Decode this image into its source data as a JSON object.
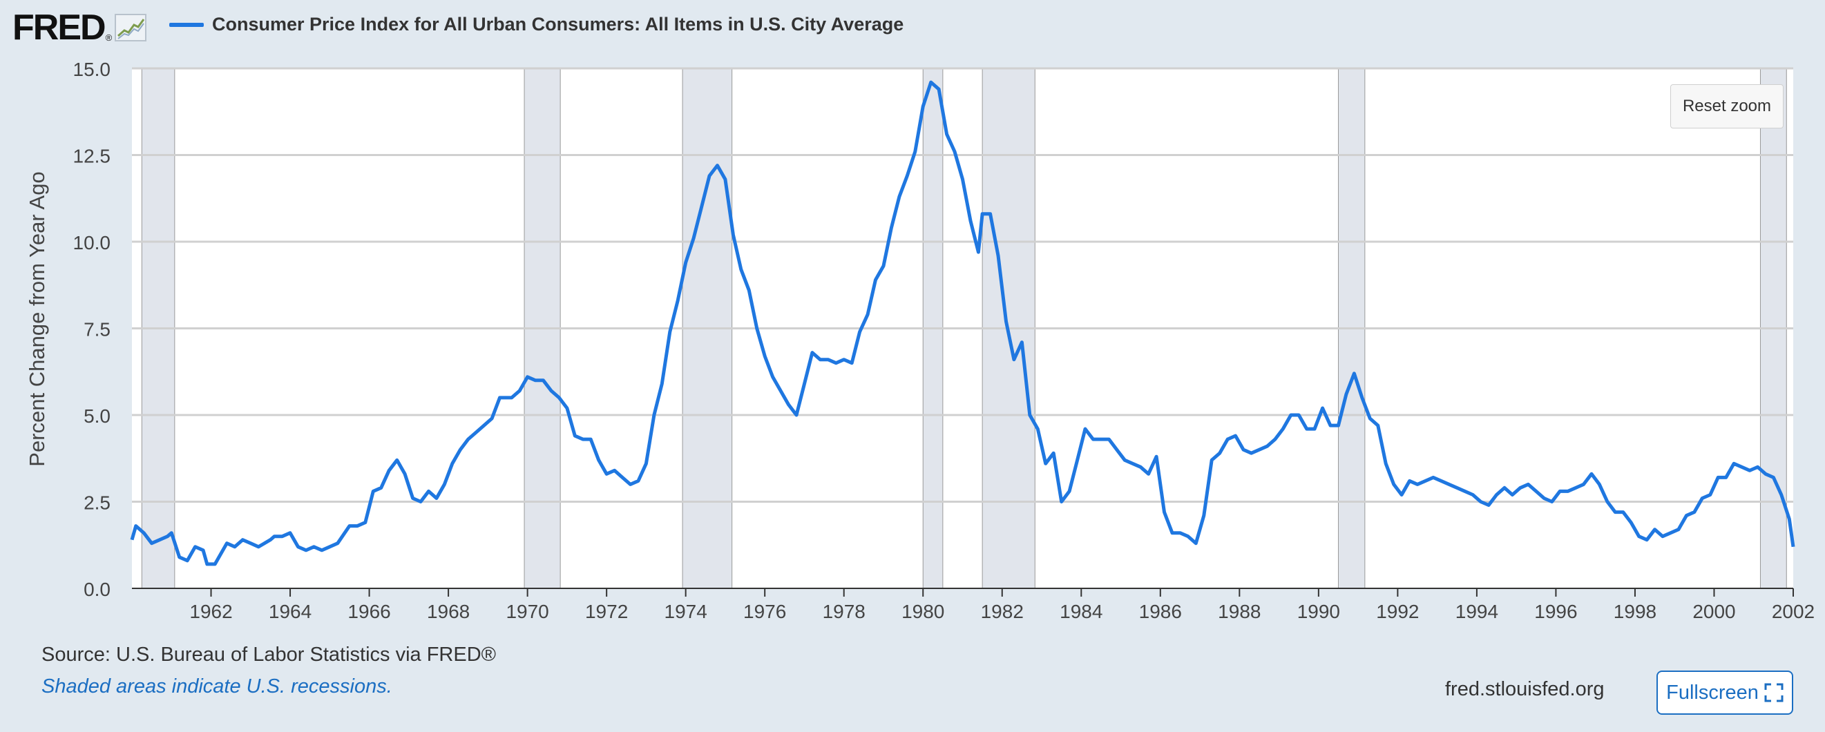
{
  "header": {
    "logo_text": "FRED",
    "logo_reg": "®",
    "legend_label": "Consumer Price Index for All Urban Consumers: All Items in U.S. City Average",
    "series_color": "#1f77e0"
  },
  "controls": {
    "reset_zoom": "Reset zoom",
    "fullscreen": "Fullscreen"
  },
  "footer": {
    "source": "Source: U.S. Bureau of Labor Statistics via FRED®",
    "note": "Shaded areas indicate U.S. recessions.",
    "site": "fred.stlouisfed.org"
  },
  "chart_data": {
    "type": "line",
    "ylabel": "Percent Change from Year Ago",
    "xlabel": "",
    "xlim": [
      1960.0,
      2002.0
    ],
    "ylim": [
      0,
      15
    ],
    "yticks": [
      "0.0",
      "2.5",
      "5.0",
      "7.5",
      "10.0",
      "12.5",
      "15.0"
    ],
    "xticks": [
      "1962",
      "1964",
      "1966",
      "1968",
      "1970",
      "1972",
      "1974",
      "1976",
      "1978",
      "1980",
      "1982",
      "1984",
      "1986",
      "1988",
      "1990",
      "1992",
      "1994",
      "1996",
      "1998",
      "2000",
      "2002"
    ],
    "grid": true,
    "recessions": [
      [
        1960.25,
        1961.08
      ],
      [
        1969.92,
        1970.83
      ],
      [
        1973.92,
        1975.17
      ],
      [
        1980.0,
        1980.5
      ],
      [
        1981.5,
        1982.83
      ],
      [
        1990.5,
        1991.17
      ],
      [
        2001.17,
        2001.83
      ]
    ],
    "series": [
      {
        "name": "Consumer Price Index for All Urban Consumers: All Items in U.S. City Average",
        "points": [
          [
            1960.0,
            1.4
          ],
          [
            1960.1,
            1.8
          ],
          [
            1960.3,
            1.6
          ],
          [
            1960.5,
            1.3
          ],
          [
            1960.7,
            1.4
          ],
          [
            1960.9,
            1.5
          ],
          [
            1961.0,
            1.6
          ],
          [
            1961.2,
            0.9
          ],
          [
            1961.4,
            0.8
          ],
          [
            1961.6,
            1.2
          ],
          [
            1961.8,
            1.1
          ],
          [
            1961.9,
            0.7
          ],
          [
            1962.1,
            0.7
          ],
          [
            1962.4,
            1.3
          ],
          [
            1962.6,
            1.2
          ],
          [
            1962.8,
            1.4
          ],
          [
            1963.0,
            1.3
          ],
          [
            1963.2,
            1.2
          ],
          [
            1963.5,
            1.4
          ],
          [
            1963.6,
            1.5
          ],
          [
            1963.8,
            1.5
          ],
          [
            1964.0,
            1.6
          ],
          [
            1964.2,
            1.2
          ],
          [
            1964.4,
            1.1
          ],
          [
            1964.6,
            1.2
          ],
          [
            1964.8,
            1.1
          ],
          [
            1965.0,
            1.2
          ],
          [
            1965.2,
            1.3
          ],
          [
            1965.5,
            1.8
          ],
          [
            1965.7,
            1.8
          ],
          [
            1965.9,
            1.9
          ],
          [
            1966.1,
            2.8
          ],
          [
            1966.3,
            2.9
          ],
          [
            1966.5,
            3.4
          ],
          [
            1966.7,
            3.7
          ],
          [
            1966.9,
            3.3
          ],
          [
            1967.1,
            2.6
          ],
          [
            1967.3,
            2.5
          ],
          [
            1967.5,
            2.8
          ],
          [
            1967.7,
            2.6
          ],
          [
            1967.9,
            3.0
          ],
          [
            1968.1,
            3.6
          ],
          [
            1968.3,
            4.0
          ],
          [
            1968.5,
            4.3
          ],
          [
            1968.7,
            4.5
          ],
          [
            1968.9,
            4.7
          ],
          [
            1969.1,
            4.9
          ],
          [
            1969.3,
            5.5
          ],
          [
            1969.6,
            5.5
          ],
          [
            1969.8,
            5.7
          ],
          [
            1970.0,
            6.1
          ],
          [
            1970.2,
            6.0
          ],
          [
            1970.4,
            6.0
          ],
          [
            1970.6,
            5.7
          ],
          [
            1970.8,
            5.5
          ],
          [
            1971.0,
            5.2
          ],
          [
            1971.2,
            4.4
          ],
          [
            1971.4,
            4.3
          ],
          [
            1971.6,
            4.3
          ],
          [
            1971.8,
            3.7
          ],
          [
            1972.0,
            3.3
          ],
          [
            1972.2,
            3.4
          ],
          [
            1972.4,
            3.2
          ],
          [
            1972.6,
            3.0
          ],
          [
            1972.8,
            3.1
          ],
          [
            1973.0,
            3.6
          ],
          [
            1973.2,
            5.0
          ],
          [
            1973.4,
            5.9
          ],
          [
            1973.6,
            7.4
          ],
          [
            1973.8,
            8.3
          ],
          [
            1974.0,
            9.4
          ],
          [
            1974.2,
            10.1
          ],
          [
            1974.4,
            11.0
          ],
          [
            1974.6,
            11.9
          ],
          [
            1974.8,
            12.2
          ],
          [
            1975.0,
            11.8
          ],
          [
            1975.2,
            10.2
          ],
          [
            1975.4,
            9.2
          ],
          [
            1975.6,
            8.6
          ],
          [
            1975.8,
            7.5
          ],
          [
            1976.0,
            6.7
          ],
          [
            1976.2,
            6.1
          ],
          [
            1976.4,
            5.7
          ],
          [
            1976.6,
            5.3
          ],
          [
            1976.8,
            5.0
          ],
          [
            1977.0,
            5.9
          ],
          [
            1977.2,
            6.8
          ],
          [
            1977.4,
            6.6
          ],
          [
            1977.6,
            6.6
          ],
          [
            1977.8,
            6.5
          ],
          [
            1978.0,
            6.6
          ],
          [
            1978.2,
            6.5
          ],
          [
            1978.4,
            7.4
          ],
          [
            1978.6,
            7.9
          ],
          [
            1978.8,
            8.9
          ],
          [
            1979.0,
            9.3
          ],
          [
            1979.2,
            10.4
          ],
          [
            1979.4,
            11.3
          ],
          [
            1979.6,
            11.9
          ],
          [
            1979.8,
            12.6
          ],
          [
            1980.0,
            13.9
          ],
          [
            1980.2,
            14.6
          ],
          [
            1980.4,
            14.4
          ],
          [
            1980.6,
            13.1
          ],
          [
            1980.8,
            12.6
          ],
          [
            1981.0,
            11.8
          ],
          [
            1981.2,
            10.6
          ],
          [
            1981.4,
            9.7
          ],
          [
            1981.5,
            10.8
          ],
          [
            1981.7,
            10.8
          ],
          [
            1981.9,
            9.6
          ],
          [
            1982.1,
            7.7
          ],
          [
            1982.3,
            6.6
          ],
          [
            1982.5,
            7.1
          ],
          [
            1982.7,
            5.0
          ],
          [
            1982.9,
            4.6
          ],
          [
            1983.1,
            3.6
          ],
          [
            1983.3,
            3.9
          ],
          [
            1983.5,
            2.5
          ],
          [
            1983.7,
            2.8
          ],
          [
            1983.9,
            3.7
          ],
          [
            1984.1,
            4.6
          ],
          [
            1984.3,
            4.3
          ],
          [
            1984.5,
            4.3
          ],
          [
            1984.7,
            4.3
          ],
          [
            1984.9,
            4.0
          ],
          [
            1985.1,
            3.7
          ],
          [
            1985.3,
            3.6
          ],
          [
            1985.5,
            3.5
          ],
          [
            1985.7,
            3.3
          ],
          [
            1985.9,
            3.8
          ],
          [
            1986.1,
            2.2
          ],
          [
            1986.3,
            1.6
          ],
          [
            1986.5,
            1.6
          ],
          [
            1986.7,
            1.5
          ],
          [
            1986.9,
            1.3
          ],
          [
            1987.1,
            2.1
          ],
          [
            1987.3,
            3.7
          ],
          [
            1987.5,
            3.9
          ],
          [
            1987.7,
            4.3
          ],
          [
            1987.9,
            4.4
          ],
          [
            1988.1,
            4.0
          ],
          [
            1988.3,
            3.9
          ],
          [
            1988.5,
            4.0
          ],
          [
            1988.7,
            4.1
          ],
          [
            1988.9,
            4.3
          ],
          [
            1989.1,
            4.6
          ],
          [
            1989.3,
            5.0
          ],
          [
            1989.5,
            5.0
          ],
          [
            1989.7,
            4.6
          ],
          [
            1989.9,
            4.6
          ],
          [
            1990.1,
            5.2
          ],
          [
            1990.3,
            4.7
          ],
          [
            1990.5,
            4.7
          ],
          [
            1990.7,
            5.6
          ],
          [
            1990.9,
            6.2
          ],
          [
            1991.1,
            5.5
          ],
          [
            1991.3,
            4.9
          ],
          [
            1991.5,
            4.7
          ],
          [
            1991.7,
            3.6
          ],
          [
            1991.9,
            3.0
          ],
          [
            1992.1,
            2.7
          ],
          [
            1992.3,
            3.1
          ],
          [
            1992.5,
            3.0
          ],
          [
            1992.7,
            3.1
          ],
          [
            1992.9,
            3.2
          ],
          [
            1993.1,
            3.1
          ],
          [
            1993.3,
            3.0
          ],
          [
            1993.5,
            2.9
          ],
          [
            1993.7,
            2.8
          ],
          [
            1993.9,
            2.7
          ],
          [
            1994.1,
            2.5
          ],
          [
            1994.3,
            2.4
          ],
          [
            1994.5,
            2.7
          ],
          [
            1994.7,
            2.9
          ],
          [
            1994.9,
            2.7
          ],
          [
            1995.1,
            2.9
          ],
          [
            1995.3,
            3.0
          ],
          [
            1995.5,
            2.8
          ],
          [
            1995.7,
            2.6
          ],
          [
            1995.9,
            2.5
          ],
          [
            1996.1,
            2.8
          ],
          [
            1996.3,
            2.8
          ],
          [
            1996.5,
            2.9
          ],
          [
            1996.7,
            3.0
          ],
          [
            1996.9,
            3.3
          ],
          [
            1997.1,
            3.0
          ],
          [
            1997.3,
            2.5
          ],
          [
            1997.5,
            2.2
          ],
          [
            1997.7,
            2.2
          ],
          [
            1997.9,
            1.9
          ],
          [
            1998.1,
            1.5
          ],
          [
            1998.3,
            1.4
          ],
          [
            1998.5,
            1.7
          ],
          [
            1998.7,
            1.5
          ],
          [
            1998.9,
            1.6
          ],
          [
            1999.1,
            1.7
          ],
          [
            1999.3,
            2.1
          ],
          [
            1999.5,
            2.2
          ],
          [
            1999.7,
            2.6
          ],
          [
            1999.9,
            2.7
          ],
          [
            2000.1,
            3.2
          ],
          [
            2000.3,
            3.2
          ],
          [
            2000.5,
            3.6
          ],
          [
            2000.7,
            3.5
          ],
          [
            2000.9,
            3.4
          ],
          [
            2001.1,
            3.5
          ],
          [
            2001.3,
            3.3
          ],
          [
            2001.5,
            3.2
          ],
          [
            2001.7,
            2.7
          ],
          [
            2001.9,
            2.0
          ],
          [
            2002.0,
            1.2
          ]
        ]
      }
    ]
  }
}
